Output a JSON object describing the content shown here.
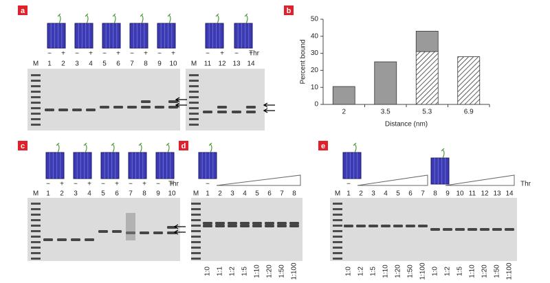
{
  "panel_a": {
    "label": "a",
    "gel1_lanes": [
      "M",
      "1",
      "2",
      "3",
      "4",
      "5",
      "6",
      "7",
      "8",
      "9",
      "10"
    ],
    "gel1_signs": [
      "−",
      "+",
      "−",
      "+",
      "−",
      "+",
      "−",
      "+",
      "−",
      "+"
    ],
    "gel2_lanes": [
      "M",
      "11",
      "12",
      "13",
      "14"
    ],
    "gel2_signs": [
      "−",
      "+",
      "−",
      "+"
    ],
    "treatment": "Thr"
  },
  "panel_b": {
    "label": "b"
  },
  "panel_c": {
    "label": "c",
    "lanes": [
      "M",
      "1",
      "2",
      "3",
      "4",
      "5",
      "6",
      "7",
      "8",
      "9",
      "10"
    ],
    "signs": [
      "−",
      "+",
      "−",
      "+",
      "−",
      "+",
      "−",
      "+",
      "−",
      "+"
    ],
    "treatment": "Thr"
  },
  "panel_d": {
    "label": "d",
    "lanes": [
      "M",
      "1",
      "2",
      "3",
      "4",
      "5",
      "6",
      "7",
      "8"
    ],
    "signs": [
      "−"
    ],
    "ratios": [
      "1:0",
      "1:1",
      "1:2",
      "1:5",
      "1:10",
      "1:20",
      "1:50",
      "1:100"
    ]
  },
  "panel_e": {
    "label": "e",
    "lanes": [
      "M",
      "1",
      "2",
      "3",
      "4",
      "5",
      "6",
      "7",
      "8",
      "9",
      "10",
      "11",
      "12",
      "13",
      "14"
    ],
    "signs": [
      "−"
    ],
    "ratios": [
      "1:0",
      "1:2",
      "1:5",
      "1:10",
      "1:20",
      "1:50",
      "1:100",
      "1:0",
      "1:2",
      "1:5",
      "1:10",
      "1:20",
      "1:50",
      "1:100"
    ],
    "treatment": "Thr"
  },
  "chart_data": {
    "type": "bar",
    "categories": [
      "2",
      "3.5",
      "5.3",
      "6.9"
    ],
    "x_label": "Distance (nm)",
    "y_label": "Percent bound",
    "ylim": [
      0,
      50
    ],
    "yticks": [
      0,
      10,
      20,
      30,
      40,
      50
    ],
    "series": [
      {
        "color": "#555555",
        "pattern": "hatch",
        "values": [
          null,
          null,
          31,
          28
        ]
      },
      {
        "color": "#9a9a9a",
        "values": [
          10.5,
          25,
          12,
          null
        ]
      }
    ]
  }
}
